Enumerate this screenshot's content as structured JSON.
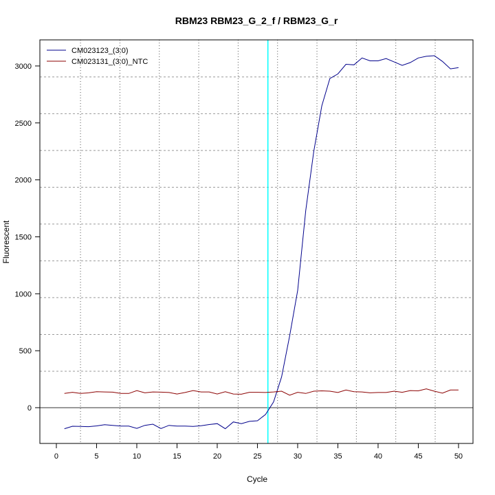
{
  "chart_data": {
    "type": "line",
    "title": "RBM23  RBM23_G_2_f / RBM23_G_r",
    "xlabel": "Cycle",
    "ylabel": "Fluorescent",
    "xlim": [
      -2.05,
      51.8
    ],
    "ylim": [
      -314,
      3229
    ],
    "xticks": [
      0,
      5,
      10,
      15,
      20,
      25,
      30,
      35,
      40,
      45,
      50
    ],
    "yticks": [
      0,
      500,
      1000,
      1500,
      2000,
      2500,
      3000
    ],
    "legend_position": "top-left",
    "threshold_cycle": 26.3,
    "threshold_color": "#00ffff",
    "baseline_y": 0,
    "x": [
      1,
      2,
      3,
      4,
      5,
      6,
      7,
      8,
      9,
      10,
      11,
      12,
      13,
      14,
      15,
      16,
      17,
      18,
      19,
      20,
      21,
      22,
      23,
      24,
      25,
      26,
      27,
      28,
      29,
      30,
      31,
      32,
      33,
      34,
      35,
      36,
      37,
      38,
      39,
      40,
      41,
      42,
      43,
      44,
      45,
      46,
      47,
      48,
      49,
      50
    ],
    "series": [
      {
        "name": "CM023123_(3:0)",
        "color": "#00008b",
        "values": [
          -185,
          -163,
          -165,
          -167,
          -160,
          -150,
          -155,
          -162,
          -162,
          -182,
          -155,
          -145,
          -183,
          -155,
          -162,
          -162,
          -165,
          -158,
          -148,
          -140,
          -185,
          -125,
          -140,
          -120,
          -115,
          -60,
          50,
          270,
          630,
          1030,
          1730,
          2250,
          2650,
          2890,
          2930,
          3015,
          3010,
          3070,
          3045,
          3045,
          3065,
          3035,
          3005,
          3030,
          3070,
          3085,
          3090,
          3040,
          2975,
          2985
        ]
      },
      {
        "name": "CM023131_(3:0)_NTC",
        "color": "#8b0000",
        "values": [
          125,
          135,
          125,
          130,
          140,
          138,
          136,
          125,
          125,
          150,
          130,
          138,
          136,
          133,
          120,
          133,
          150,
          138,
          138,
          120,
          140,
          120,
          118,
          135,
          135,
          133,
          138,
          145,
          110,
          135,
          125,
          145,
          148,
          145,
          133,
          155,
          140,
          138,
          130,
          133,
          133,
          145,
          135,
          150,
          148,
          165,
          145,
          128,
          155,
          155
        ]
      }
    ]
  }
}
